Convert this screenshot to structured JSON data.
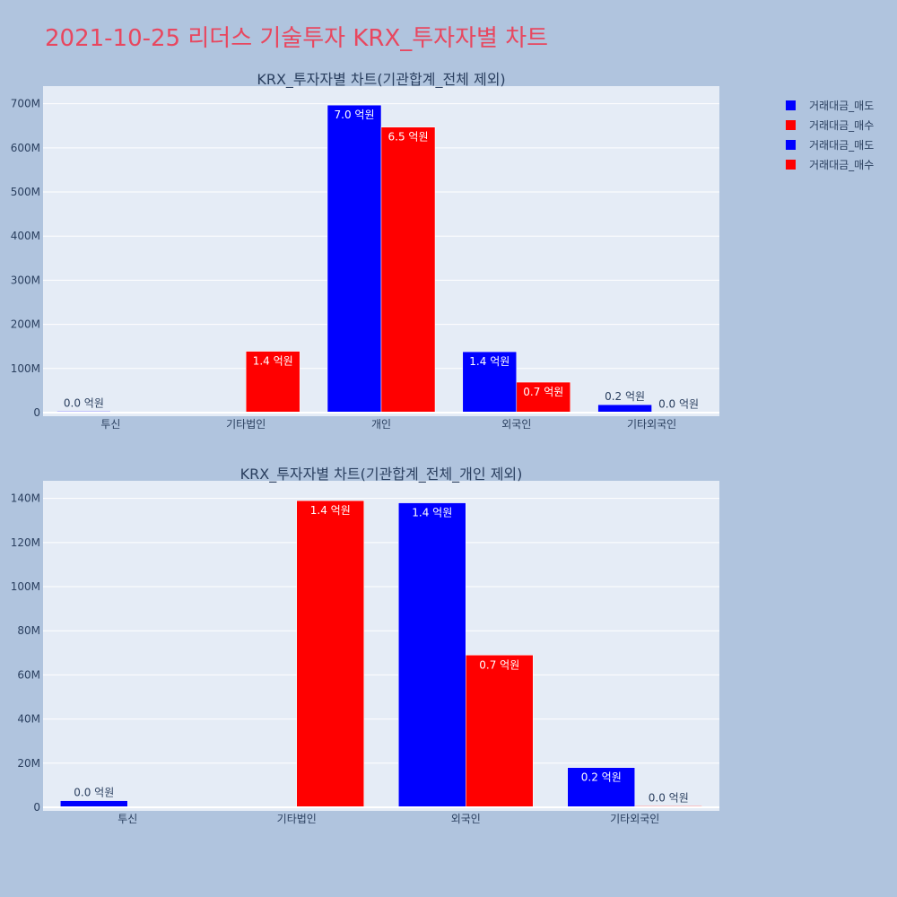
{
  "page": {
    "title": "2021-10-25 리더스 기술투자 KRX_투자자별 차트"
  },
  "colors": {
    "sell": "#0000ff",
    "buy": "#ff0000",
    "background": "#b0c4de",
    "plot_bg": "#e5ecf6",
    "title": "#e8475f"
  },
  "legend": {
    "items": [
      {
        "label": "거래대금_매도",
        "color": "#0000ff"
      },
      {
        "label": "거래대금_매수",
        "color": "#ff0000"
      },
      {
        "label": "거래대금_매도",
        "color": "#0000ff"
      },
      {
        "label": "거래대금_매수",
        "color": "#ff0000"
      }
    ]
  },
  "chart_data": [
    {
      "type": "bar",
      "title": "KRX_투자자별 차트(기관합계_전체 제외)",
      "categories": [
        "투신",
        "기타법인",
        "개인",
        "외국인",
        "기타외국인"
      ],
      "series": [
        {
          "name": "거래대금_매도",
          "color": "#0000ff",
          "values": [
            3000000,
            0,
            697000000,
            138000000,
            18000000
          ],
          "labels": [
            "0.0 억원",
            "",
            "7.0 억원",
            "1.4 억원",
            "0.2 억원"
          ]
        },
        {
          "name": "거래대금_매수",
          "color": "#ff0000",
          "values": [
            0,
            139000000,
            647000000,
            69000000,
            600000
          ],
          "labels": [
            "",
            "1.4 억원",
            "6.5 억원",
            "0.7 억원",
            "0.0 억원"
          ]
        }
      ],
      "ylim": [
        0,
        740000000
      ],
      "yticks": [
        0,
        100000000,
        200000000,
        300000000,
        400000000,
        500000000,
        600000000,
        700000000
      ],
      "ytick_labels": [
        "0",
        "100M",
        "200M",
        "300M",
        "400M",
        "500M",
        "600M",
        "700M"
      ],
      "grid": true
    },
    {
      "type": "bar",
      "title": "KRX_투자자별 차트(기관합계_전체_개인 제외)",
      "categories": [
        "투신",
        "기타법인",
        "외국인",
        "기타외국인"
      ],
      "series": [
        {
          "name": "거래대금_매도",
          "color": "#0000ff",
          "values": [
            3000000,
            0,
            138000000,
            18000000
          ],
          "labels": [
            "0.0 억원",
            "",
            "1.4 억원",
            "0.2 억원"
          ]
        },
        {
          "name": "거래대금_매수",
          "color": "#ff0000",
          "values": [
            0,
            139000000,
            69000000,
            600000
          ],
          "labels": [
            "",
            "1.4 억원",
            "0.7 억원",
            "0.0 억원"
          ]
        }
      ],
      "ylim": [
        0,
        148000000
      ],
      "yticks": [
        0,
        20000000,
        40000000,
        60000000,
        80000000,
        100000000,
        120000000,
        140000000
      ],
      "ytick_labels": [
        "0",
        "20M",
        "40M",
        "60M",
        "80M",
        "100M",
        "120M",
        "140M"
      ],
      "grid": true
    }
  ]
}
